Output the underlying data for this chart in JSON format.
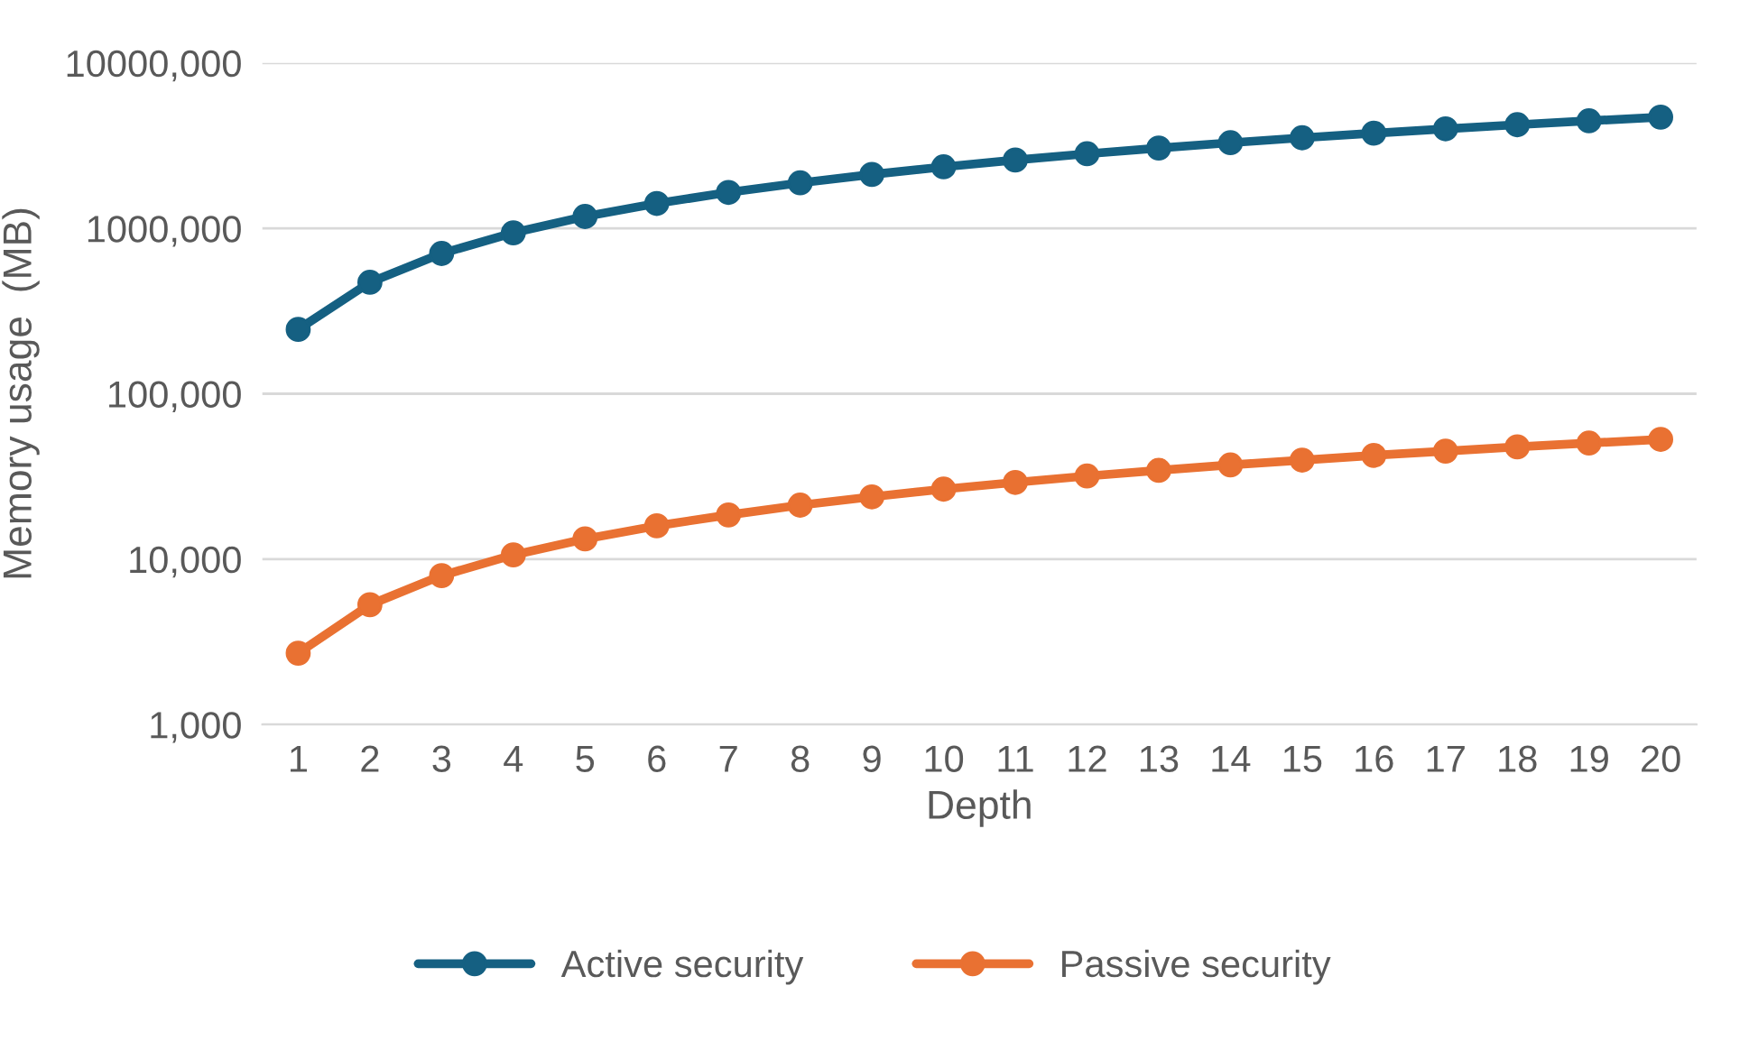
{
  "chart_data": {
    "type": "line",
    "xlabel": "Depth",
    "ylabel": "Memory usage  (MB)",
    "categories": [
      "1",
      "2",
      "3",
      "4",
      "5",
      "6",
      "7",
      "8",
      "9",
      "10",
      "11",
      "12",
      "13",
      "14",
      "15",
      "16",
      "17",
      "18",
      "19",
      "20"
    ],
    "series": [
      {
        "name": "Active security",
        "color": "#156082",
        "values": [
          245000,
          472000,
          705000,
          940000,
          1180000,
          1415000,
          1650000,
          1885000,
          2120000,
          2355000,
          2590000,
          2825000,
          3060000,
          3295000,
          3530000,
          3765000,
          4000000,
          4235000,
          4470000,
          4705000
        ]
      },
      {
        "name": "Passive security",
        "color": "#e97132",
        "values": [
          2700,
          5300,
          7950,
          10600,
          13250,
          15900,
          18500,
          21200,
          23800,
          26500,
          29100,
          31800,
          34400,
          37100,
          39700,
          42400,
          45000,
          47700,
          50300,
          53000
        ]
      }
    ],
    "log": "y",
    "ylim": [
      1000,
      10000000
    ],
    "yticks": [
      {
        "value": 1000,
        "label": "1,000"
      },
      {
        "value": 10000,
        "label": "10,000"
      },
      {
        "value": 100000,
        "label": "100,000"
      },
      {
        "value": 1000000,
        "label": "1000,000"
      },
      {
        "value": 10000000,
        "label": "10000,000"
      }
    ],
    "grid": "y",
    "legend": "bottom",
    "marker": "circle",
    "line_style": "solid"
  }
}
